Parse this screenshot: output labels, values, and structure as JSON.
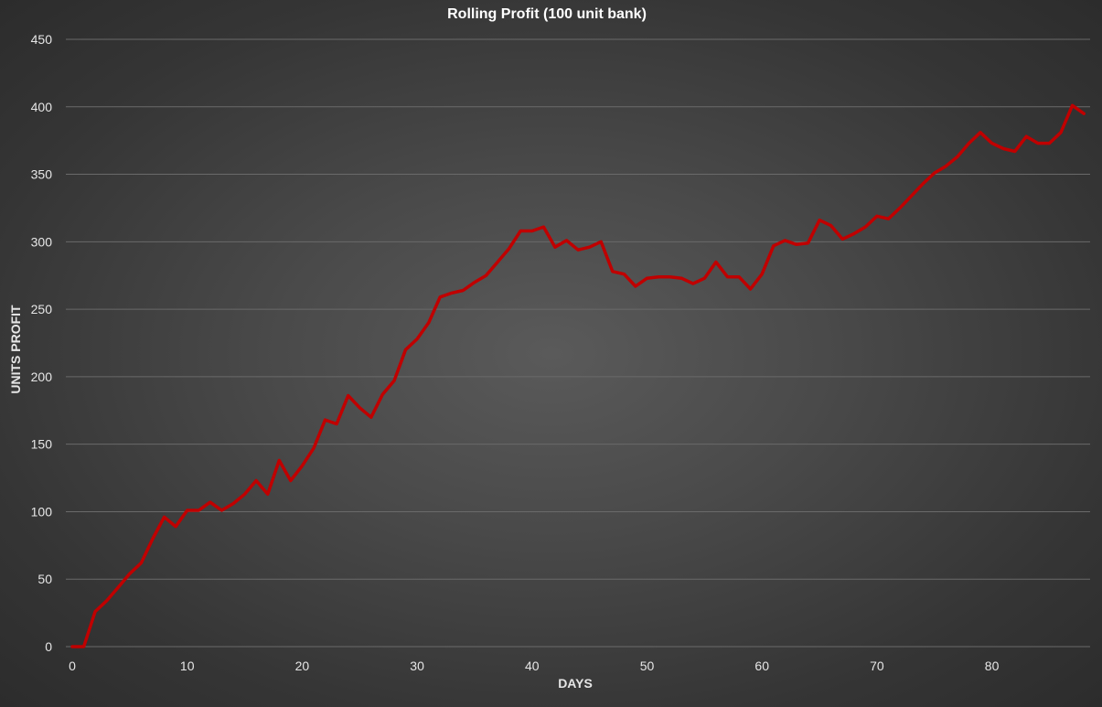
{
  "chart_data": {
    "type": "line",
    "title": "Rolling Profit (100 unit bank)",
    "xlabel": "DAYS",
    "ylabel": "UNITS PROFIT",
    "xlim": [
      0,
      89
    ],
    "ylim": [
      0,
      450
    ],
    "xticks": [
      0,
      10,
      20,
      30,
      40,
      50,
      60,
      70,
      80
    ],
    "yticks": [
      0,
      50,
      100,
      150,
      200,
      250,
      300,
      350,
      400,
      450
    ],
    "grid": true,
    "line_color": "#c00000",
    "series": [
      {
        "x": [
          0,
          1,
          2,
          3,
          4,
          5,
          6,
          7,
          8,
          9,
          10,
          11,
          12,
          13,
          14,
          15,
          16,
          17,
          18,
          19,
          20,
          21,
          22,
          23,
          24,
          25,
          26,
          27,
          28,
          29,
          30,
          31,
          32,
          33,
          34,
          35,
          36,
          37,
          38,
          39,
          40,
          41,
          42,
          43,
          44,
          45,
          46,
          47,
          48,
          49,
          50,
          51,
          52,
          53,
          54,
          55,
          56,
          57,
          58,
          59,
          60,
          61,
          62,
          63,
          64,
          65,
          66,
          67,
          68,
          69,
          70,
          71,
          72,
          73,
          74,
          75,
          76,
          77,
          78,
          79,
          80,
          81,
          82,
          83,
          84,
          85,
          86,
          87,
          88
        ],
        "values": [
          0,
          0,
          26,
          34,
          44,
          54,
          62,
          80,
          96,
          89,
          101,
          101,
          107,
          101,
          106,
          113,
          123,
          113,
          138,
          123,
          134,
          147,
          168,
          165,
          186,
          177,
          170,
          187,
          197,
          220,
          228,
          240,
          259,
          262,
          264,
          270,
          275,
          285,
          295,
          308,
          308,
          311,
          296,
          301,
          294,
          296,
          300,
          278,
          276,
          267,
          273,
          274,
          274,
          273,
          269,
          273,
          285,
          274,
          274,
          265,
          276,
          297,
          301,
          298,
          299,
          316,
          312,
          302,
          306,
          311,
          319,
          317,
          325,
          334,
          343,
          351,
          356,
          363,
          373,
          381,
          373,
          369,
          367,
          378,
          373,
          373,
          381,
          401,
          395
        ]
      }
    ]
  }
}
